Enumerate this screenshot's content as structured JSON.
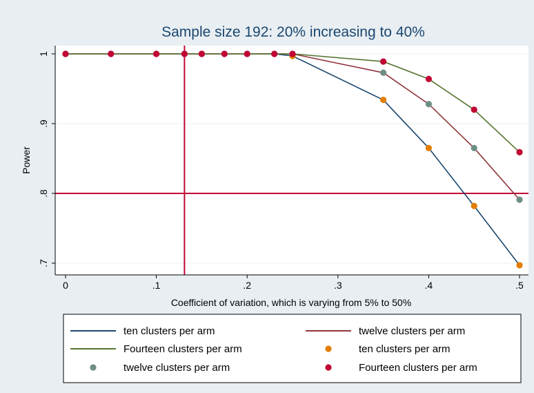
{
  "chart_data": {
    "type": "line",
    "title": "Sample size 192: 20% increasing to 40%",
    "xlabel": "Coefficient of variation, which is varying from 5% to 50%",
    "ylabel": "Power",
    "xlim": [
      0,
      0.5
    ],
    "ylim": [
      0.69,
      1.005
    ],
    "x_ticks": [
      {
        "value": 0,
        "label": "0"
      },
      {
        "value": 0.1,
        "label": ".1"
      },
      {
        "value": 0.2,
        "label": ".2"
      },
      {
        "value": 0.3,
        "label": ".3"
      },
      {
        "value": 0.4,
        "label": ".4"
      },
      {
        "value": 0.5,
        "label": ".5"
      }
    ],
    "y_ticks": [
      {
        "value": 0.7,
        "label": ".7"
      },
      {
        "value": 0.8,
        "label": ".8"
      },
      {
        "value": 0.9,
        "label": ".9"
      },
      {
        "value": 1.0,
        "label": "1"
      }
    ],
    "grid": true,
    "reference_lines": {
      "x": 0.131,
      "y": 0.8,
      "color": "#c10534"
    },
    "legend_position": "bottom",
    "series": [
      {
        "name": "ten clusters per arm",
        "kind": "line",
        "color": "#1a476f",
        "x": [
          0,
          0.05,
          0.1,
          0.131,
          0.15,
          0.175,
          0.2,
          0.23,
          0.25,
          0.35,
          0.4,
          0.45,
          0.5
        ],
        "y": [
          1,
          1,
          1,
          1,
          1,
          1,
          1,
          1,
          0.997,
          0.934,
          0.865,
          0.782,
          0.697
        ]
      },
      {
        "name": "twelve clusters per arm",
        "kind": "line",
        "color": "#90353b",
        "x": [
          0,
          0.05,
          0.1,
          0.131,
          0.15,
          0.175,
          0.2,
          0.23,
          0.25,
          0.35,
          0.4,
          0.45,
          0.5
        ],
        "y": [
          1,
          1,
          1,
          1,
          1,
          1,
          1,
          1,
          1,
          0.973,
          0.928,
          0.865,
          0.791
        ]
      },
      {
        "name": "Fourteen clusters per arm",
        "kind": "line",
        "color": "#55752f",
        "x": [
          0,
          0.05,
          0.1,
          0.131,
          0.15,
          0.175,
          0.2,
          0.23,
          0.25,
          0.35,
          0.4,
          0.45,
          0.5
        ],
        "y": [
          1,
          1,
          1,
          1,
          1,
          1,
          1,
          1,
          1,
          0.989,
          0.964,
          0.92,
          0.859
        ]
      },
      {
        "name": "ten clusters per arm",
        "kind": "scatter",
        "color": "#e37e00",
        "x": [
          0,
          0.05,
          0.1,
          0.131,
          0.15,
          0.175,
          0.2,
          0.23,
          0.25,
          0.35,
          0.4,
          0.45,
          0.5
        ],
        "y": [
          1,
          1,
          1,
          1,
          1,
          1,
          1,
          1,
          0.997,
          0.934,
          0.865,
          0.782,
          0.697
        ]
      },
      {
        "name": "twelve clusters per arm",
        "kind": "scatter",
        "color": "#6e8e84",
        "x": [
          0,
          0.05,
          0.1,
          0.131,
          0.15,
          0.175,
          0.2,
          0.23,
          0.25,
          0.35,
          0.4,
          0.45,
          0.5
        ],
        "y": [
          1,
          1,
          1,
          1,
          1,
          1,
          1,
          1,
          1,
          0.973,
          0.928,
          0.865,
          0.791
        ]
      },
      {
        "name": "Fourteen clusters per arm",
        "kind": "scatter",
        "color": "#c10534",
        "x": [
          0,
          0.05,
          0.1,
          0.131,
          0.15,
          0.175,
          0.2,
          0.23,
          0.25,
          0.35,
          0.4,
          0.45,
          0.5
        ],
        "y": [
          1,
          1,
          1,
          1,
          1,
          1,
          1,
          1,
          1,
          0.989,
          0.964,
          0.92,
          0.859
        ]
      }
    ]
  }
}
